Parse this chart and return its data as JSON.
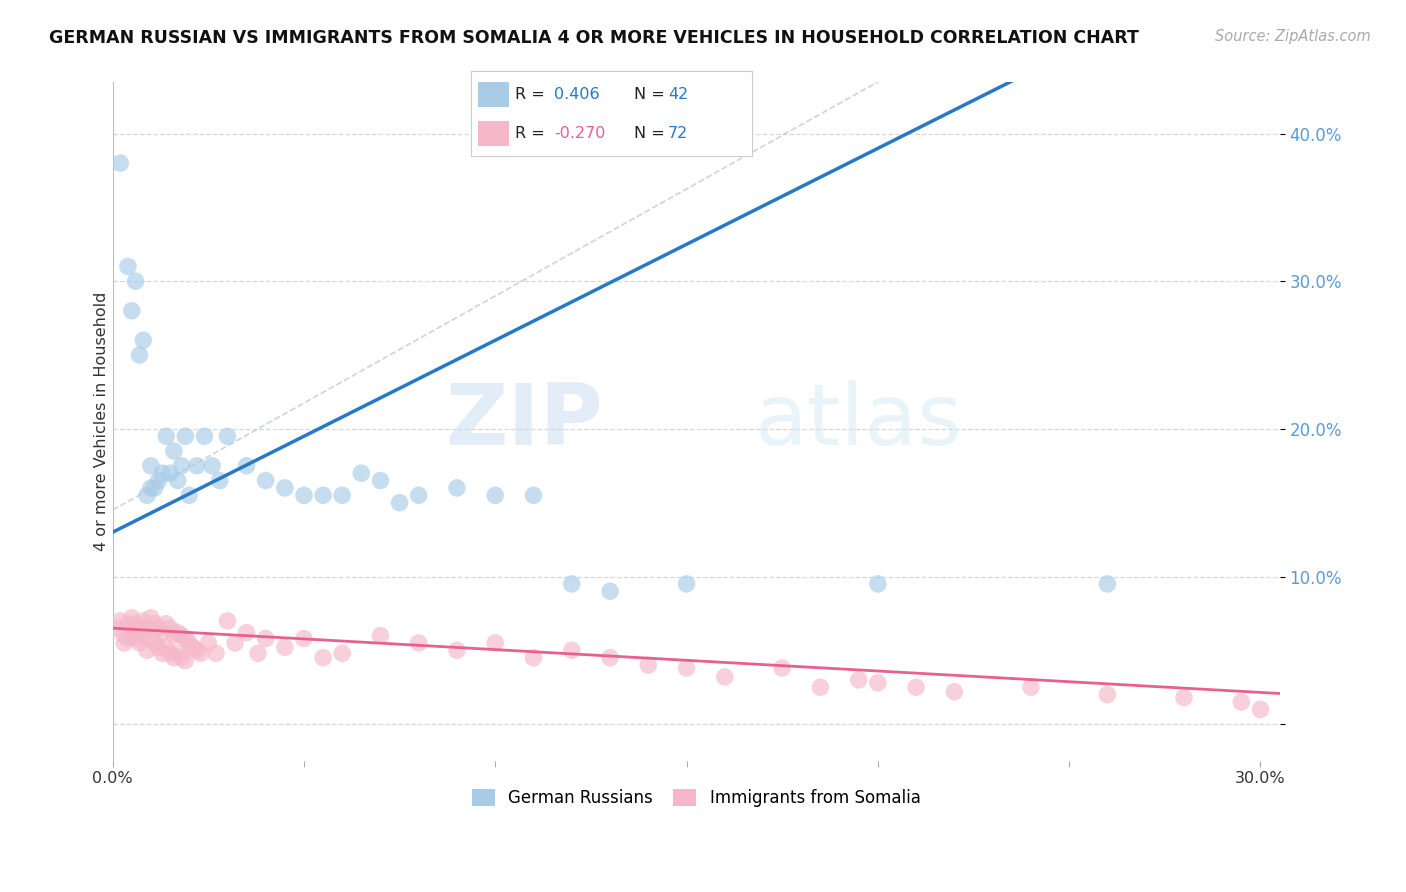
{
  "title": "GERMAN RUSSIAN VS IMMIGRANTS FROM SOMALIA 4 OR MORE VEHICLES IN HOUSEHOLD CORRELATION CHART",
  "source": "Source: ZipAtlas.com",
  "ylabel": "4 or more Vehicles in Household",
  "xlim": [
    0.0,
    0.305
  ],
  "ylim": [
    -0.025,
    0.435
  ],
  "yticks": [
    0.0,
    0.1,
    0.2,
    0.3,
    0.4
  ],
  "ytick_labels": [
    "",
    "10.0%",
    "20.0%",
    "30.0%",
    "40.0%"
  ],
  "xticks": [
    0.0,
    0.05,
    0.1,
    0.15,
    0.2,
    0.25,
    0.3
  ],
  "blue_R": 0.406,
  "blue_N": 42,
  "pink_R": -0.27,
  "pink_N": 72,
  "blue_color": "#a8cce8",
  "pink_color": "#f5b8ca",
  "blue_line_color": "#2878c8",
  "pink_line_color": "#e86090",
  "dashed_line_color": "#b8c8d8",
  "background_color": "#ffffff",
  "grid_color": "#d8d8d8",
  "blue_scatter_x": [
    0.002,
    0.004,
    0.005,
    0.006,
    0.007,
    0.008,
    0.009,
    0.01,
    0.01,
    0.011,
    0.012,
    0.013,
    0.014,
    0.015,
    0.016,
    0.017,
    0.018,
    0.019,
    0.02,
    0.022,
    0.024,
    0.026,
    0.028,
    0.03,
    0.035,
    0.04,
    0.045,
    0.05,
    0.055,
    0.06,
    0.065,
    0.07,
    0.075,
    0.08,
    0.09,
    0.1,
    0.11,
    0.12,
    0.13,
    0.15,
    0.2,
    0.26
  ],
  "blue_scatter_y": [
    0.38,
    0.31,
    0.28,
    0.3,
    0.25,
    0.26,
    0.155,
    0.16,
    0.175,
    0.16,
    0.165,
    0.17,
    0.195,
    0.17,
    0.185,
    0.165,
    0.175,
    0.195,
    0.155,
    0.175,
    0.195,
    0.175,
    0.165,
    0.195,
    0.175,
    0.165,
    0.16,
    0.155,
    0.155,
    0.155,
    0.17,
    0.165,
    0.15,
    0.155,
    0.16,
    0.155,
    0.155,
    0.095,
    0.09,
    0.095,
    0.095,
    0.095
  ],
  "pink_scatter_x": [
    0.001,
    0.002,
    0.003,
    0.003,
    0.004,
    0.004,
    0.005,
    0.005,
    0.006,
    0.006,
    0.007,
    0.007,
    0.008,
    0.008,
    0.009,
    0.009,
    0.01,
    0.01,
    0.011,
    0.011,
    0.012,
    0.012,
    0.013,
    0.013,
    0.014,
    0.014,
    0.015,
    0.015,
    0.016,
    0.016,
    0.017,
    0.017,
    0.018,
    0.018,
    0.019,
    0.019,
    0.02,
    0.021,
    0.022,
    0.023,
    0.025,
    0.027,
    0.03,
    0.032,
    0.035,
    0.038,
    0.04,
    0.045,
    0.05,
    0.055,
    0.06,
    0.07,
    0.08,
    0.09,
    0.1,
    0.11,
    0.12,
    0.13,
    0.14,
    0.15,
    0.16,
    0.175,
    0.185,
    0.195,
    0.2,
    0.21,
    0.22,
    0.24,
    0.26,
    0.28,
    0.295,
    0.3
  ],
  "pink_scatter_y": [
    0.065,
    0.07,
    0.06,
    0.055,
    0.068,
    0.058,
    0.072,
    0.062,
    0.068,
    0.058,
    0.065,
    0.055,
    0.07,
    0.06,
    0.065,
    0.05,
    0.072,
    0.058,
    0.068,
    0.055,
    0.065,
    0.052,
    0.062,
    0.048,
    0.068,
    0.052,
    0.065,
    0.048,
    0.06,
    0.045,
    0.062,
    0.048,
    0.06,
    0.045,
    0.058,
    0.043,
    0.055,
    0.052,
    0.05,
    0.048,
    0.055,
    0.048,
    0.07,
    0.055,
    0.062,
    0.048,
    0.058,
    0.052,
    0.058,
    0.045,
    0.048,
    0.06,
    0.055,
    0.05,
    0.055,
    0.045,
    0.05,
    0.045,
    0.04,
    0.038,
    0.032,
    0.038,
    0.025,
    0.03,
    0.028,
    0.025,
    0.022,
    0.025,
    0.02,
    0.018,
    0.015,
    0.01
  ],
  "watermark_text": "ZIPatlas",
  "watermark_color": "#c8dff0",
  "legend_label_blue": "German Russians",
  "legend_label_pink": "Immigrants from Somalia"
}
